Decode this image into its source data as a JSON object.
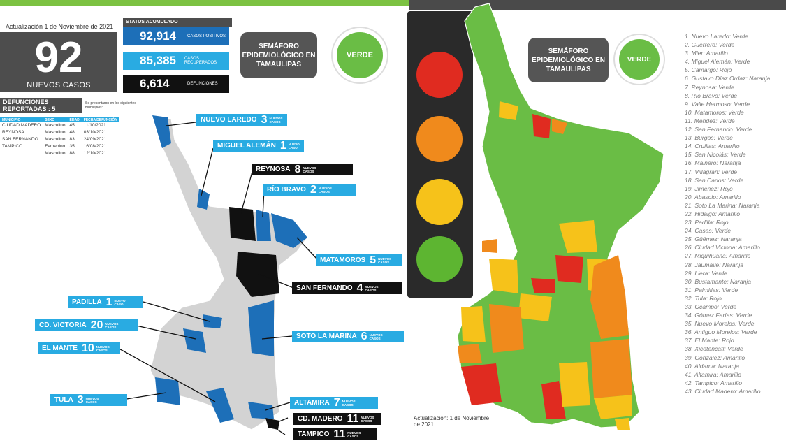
{
  "left": {
    "update_text": "Actualización 1 de Noviembre de 2021",
    "new_cases": {
      "value": "92",
      "label": "NUEVOS CASOS"
    },
    "status": {
      "title": "STATUS ACUMULADO",
      "rows": [
        {
          "value": "92,914",
          "label": "CASOS POSITIVOS",
          "color": "#1d6fb8"
        },
        {
          "value": "85,385",
          "label": "CASOS RECUPERADOS",
          "color": "#29abe2"
        },
        {
          "value": "6,614",
          "label": "DEFUNCIONES",
          "color": "#111111"
        }
      ]
    },
    "semaforo": {
      "title": "SEMÁFORO EPIDEMIOLÓGICO EN TAMAULIPAS",
      "status": "VERDE"
    },
    "deaths": {
      "title": "DEFUNCIONES REPORTADAS : 5",
      "note": "Se presentaron en los siguientes municipios:",
      "headers": [
        "MUNICIPIO",
        "SEXO",
        "EDAD",
        "FECHA DEFUNCIÓN"
      ],
      "rows": [
        [
          "CIUDAD MADERO",
          "Masculino",
          "45",
          "11/10/2021"
        ],
        [
          "REYNOSA",
          "Masculino",
          "48",
          "03/10/2021"
        ],
        [
          "SAN FERNANDO",
          "Masculino",
          "83",
          "24/09/2021"
        ],
        [
          "TAMPICO",
          "Femenino",
          "35",
          "16/08/2021"
        ],
        [
          "",
          "Masculino",
          "88",
          "12/10/2021"
        ]
      ]
    },
    "municipalities": [
      {
        "name": "NUEVO LAREDO",
        "count": "3",
        "unit": "NUEVOS CASOS",
        "style": "blue"
      },
      {
        "name": "MIGUEL ALEMÁN",
        "count": "1",
        "unit": "NUEVO CASO",
        "style": "blue"
      },
      {
        "name": "REYNOSA",
        "count": "8",
        "unit": "NUEVOS CASOS",
        "style": "black"
      },
      {
        "name": "RÍO BRAVO",
        "count": "2",
        "unit": "NUEVOS CASOS",
        "style": "blue"
      },
      {
        "name": "MATAMOROS",
        "count": "5",
        "unit": "NUEVOS CASOS",
        "style": "blue"
      },
      {
        "name": "SAN FERNANDO",
        "count": "4",
        "unit": "NUEVOS CASOS",
        "style": "black"
      },
      {
        "name": "PADILLA",
        "count": "1",
        "unit": "NUEVO CASO",
        "style": "blue"
      },
      {
        "name": "CD. VICTORIA",
        "count": "20",
        "unit": "NUEVOS CASOS",
        "style": "blue"
      },
      {
        "name": "EL MANTE",
        "count": "10",
        "unit": "NUEVOS CASOS",
        "style": "blue"
      },
      {
        "name": "SOTO LA MARINA",
        "count": "6",
        "unit": "NUEVOS CASOS",
        "style": "blue"
      },
      {
        "name": "TULA",
        "count": "3",
        "unit": "NUEVOS CASOS",
        "style": "blue"
      },
      {
        "name": "ALTAMIRA",
        "count": "7",
        "unit": "NUEVOS CASOS",
        "style": "blue"
      },
      {
        "name": "CD. MADERO",
        "count": "11",
        "unit": "NUEVOS CASOS",
        "style": "black"
      },
      {
        "name": "TAMPICO",
        "count": "11",
        "unit": "NUEVOS CASOS",
        "style": "black"
      }
    ]
  },
  "right": {
    "semaforo": {
      "title": "SEMÁFORO EPIDEMIOLÓGICO EN TAMAULIPAS",
      "status": "VERDE"
    },
    "update_text": "Actualización: 1 de Noviembre de 2021",
    "traffic_light_colors": [
      "#e02b20",
      "#f08a1c",
      "#f6c21a",
      "#5db531"
    ],
    "legend": [
      "1. Nuevo Laredo: Verde",
      "2. Guerrero: Verde",
      "3. Mier: Amarillo",
      "4. Miguel Alemán: Verde",
      "5. Camargo: Rojo",
      "6. Gustavo Díaz Ordaz: Naranja",
      "7. Reynosa: Verde",
      "8. Río Bravo: Verde",
      "9. Valle Hermoso: Verde",
      "10. Matamoros: Verde",
      "11. Méndez: Verde",
      "12. San Fernando: Verde",
      "13. Burgos: Verde",
      "14. Cruillas: Amarillo",
      "15. San Nicolás: Verde",
      "16. Mainero: Naranja",
      "17. Villagrán: Verde",
      "18. San Carlos: Verde",
      "19. Jiménez: Rojo",
      "20. Abasolo: Amarillo",
      "21. Soto La Marina: Naranja",
      "22. Hidalgo: Amarillo",
      "23. Padilla: Rojo",
      "24. Casas: Verde",
      "25. Güémez: Naranja",
      "26. Ciudad Victoria: Amarillo",
      "27. Miquihuana: Amarillo",
      "28. Jaumave: Naranja",
      "29. Llera: Verde",
      "30. Bustamante: Naranja",
      "31. Palmillas: Verde",
      "32. Tula: Rojo",
      "33. Ocampo: Verde",
      "34. Gómez Farías: Verde",
      "35. Nuevo Morelos: Verde",
      "36. Antiguo Morelos: Verde",
      "37. El Mante: Rojo",
      "38. Xicoténcatl: Verde",
      "39. González: Amarillo",
      "40. Aldama: Naranja",
      "41. Altamira: Amarillo",
      "42. Tampico: Amarillo",
      "43. Ciudad Madero: Amarillo"
    ]
  }
}
